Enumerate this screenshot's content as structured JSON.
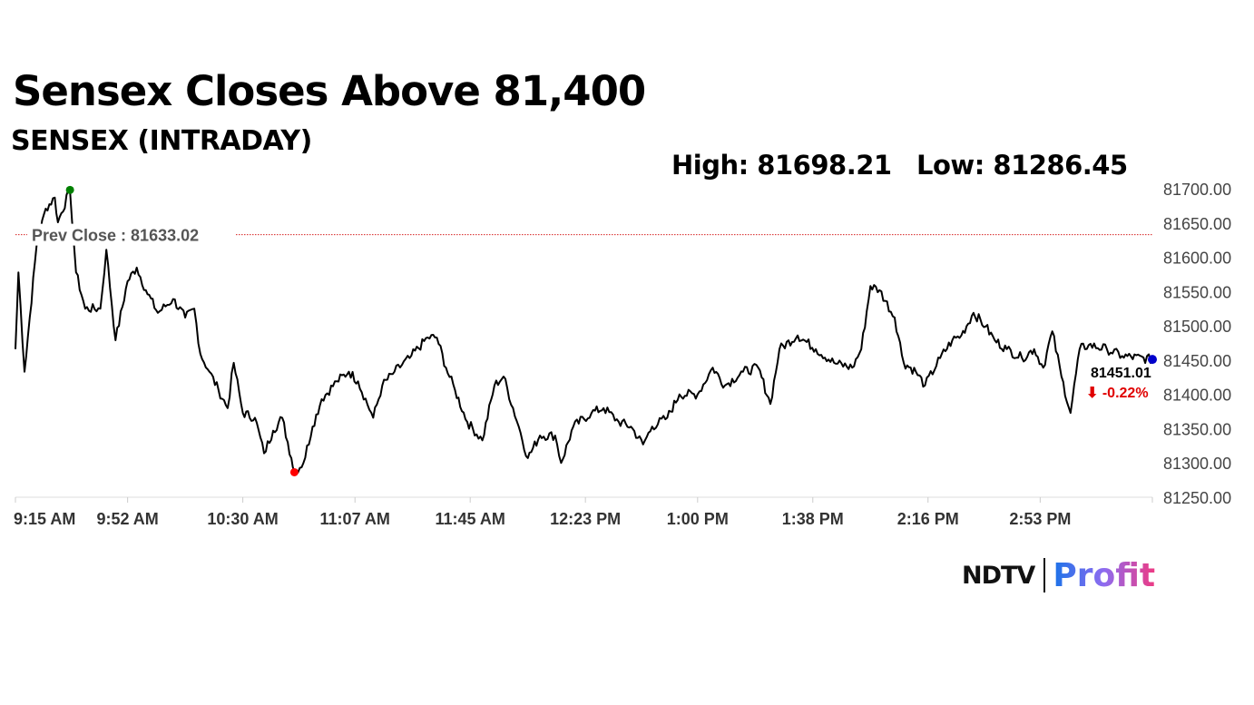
{
  "header": {
    "title": "Sensex Closes Above 81,400",
    "subtitle": "SENSEX (INTRADAY)",
    "high_label": "High: 81698.21",
    "low_label": "Low: 81286.45"
  },
  "chart_data": {
    "type": "line",
    "title": "SENSEX (INTRADAY)",
    "x_unit": "minutes since 9:15 AM",
    "xlim": [
      0,
      375
    ],
    "ylim": [
      81250,
      81700
    ],
    "y_ticks": [
      "81250.00",
      "81300.00",
      "81350.00",
      "81400.00",
      "81450.00",
      "81500.00",
      "81550.00",
      "81600.00",
      "81650.00",
      "81700.00"
    ],
    "y_tick_values": [
      81250,
      81300,
      81350,
      81400,
      81450,
      81500,
      81550,
      81600,
      81650,
      81700
    ],
    "x_ticks": [
      "9:15 AM",
      "9:52 AM",
      "10:30 AM",
      "11:07 AM",
      "11:45 AM",
      "12:23 PM",
      "1:00 PM",
      "1:38 PM",
      "2:16 PM",
      "2:53 PM"
    ],
    "x_tick_values": [
      0,
      37,
      75,
      112,
      150,
      188,
      225,
      263,
      301,
      338
    ],
    "prev_close": 81633.02,
    "prev_close_label": "Prev Close : 81633.02",
    "high": {
      "x": 18,
      "y": 81698.21
    },
    "low": {
      "x": 92,
      "y": 81286.45
    },
    "last": {
      "x": 375,
      "y": 81451.01
    },
    "last_label": "81451.01",
    "change_label": "⬇ -0.22%",
    "colors": {
      "line": "#000000",
      "high": "#008000",
      "low": "#ff0000",
      "last": "#0000cc",
      "prev_close": "#d62020",
      "change": "#e00000"
    },
    "series": [
      {
        "name": "SENSEX",
        "points": [
          [
            0,
            81466
          ],
          [
            1,
            81578
          ],
          [
            3,
            81433
          ],
          [
            7,
            81618
          ],
          [
            10,
            81671
          ],
          [
            13,
            81687
          ],
          [
            14,
            81651
          ],
          [
            18,
            81698
          ],
          [
            20,
            81578
          ],
          [
            23,
            81525
          ],
          [
            28,
            81525
          ],
          [
            30,
            81611
          ],
          [
            33,
            81479
          ],
          [
            37,
            81565
          ],
          [
            40,
            81585
          ],
          [
            43,
            81552
          ],
          [
            47,
            81519
          ],
          [
            52,
            81539
          ],
          [
            56,
            81512
          ],
          [
            59,
            81525
          ],
          [
            61,
            81459
          ],
          [
            64,
            81433
          ],
          [
            67,
            81406
          ],
          [
            70,
            81380
          ],
          [
            72,
            81446
          ],
          [
            75,
            81373
          ],
          [
            79,
            81366
          ],
          [
            82,
            81314
          ],
          [
            85,
            81347
          ],
          [
            88,
            81366
          ],
          [
            91,
            81307
          ],
          [
            92,
            81287
          ],
          [
            95,
            81300
          ],
          [
            98,
            81353
          ],
          [
            101,
            81393
          ],
          [
            106,
            81419
          ],
          [
            110,
            81433
          ],
          [
            113,
            81419
          ],
          [
            118,
            81366
          ],
          [
            121,
            81413
          ],
          [
            125,
            81433
          ],
          [
            130,
            81453
          ],
          [
            136,
            81483
          ],
          [
            139,
            81483
          ],
          [
            142,
            81439
          ],
          [
            145,
            81406
          ],
          [
            149,
            81360
          ],
          [
            154,
            81333
          ],
          [
            158,
            81413
          ],
          [
            161,
            81426
          ],
          [
            166,
            81353
          ],
          [
            169,
            81307
          ],
          [
            173,
            81340
          ],
          [
            178,
            81340
          ],
          [
            180,
            81300
          ],
          [
            184,
            81353
          ],
          [
            190,
            81373
          ],
          [
            194,
            81380
          ],
          [
            199,
            81360
          ],
          [
            203,
            81353
          ],
          [
            207,
            81327
          ],
          [
            210,
            81353
          ],
          [
            215,
            81366
          ],
          [
            219,
            81400
          ],
          [
            225,
            81400
          ],
          [
            230,
            81439
          ],
          [
            234,
            81413
          ],
          [
            240,
            81433
          ],
          [
            245,
            81439
          ],
          [
            249,
            81386
          ],
          [
            252,
            81466
          ],
          [
            258,
            81486
          ],
          [
            264,
            81466
          ],
          [
            270,
            81446
          ],
          [
            276,
            81439
          ],
          [
            279,
            81466
          ],
          [
            282,
            81558
          ],
          [
            285,
            81552
          ],
          [
            290,
            81512
          ],
          [
            293,
            81446
          ],
          [
            297,
            81433
          ],
          [
            300,
            81413
          ],
          [
            305,
            81453
          ],
          [
            309,
            81479
          ],
          [
            312,
            81486
          ],
          [
            316,
            81519
          ],
          [
            320,
            81499
          ],
          [
            323,
            81479
          ],
          [
            327,
            81466
          ],
          [
            332,
            81453
          ],
          [
            336,
            81466
          ],
          [
            339,
            81439
          ],
          [
            342,
            81492
          ],
          [
            345,
            81426
          ],
          [
            348,
            81373
          ],
          [
            351,
            81466
          ],
          [
            354,
            81472
          ],
          [
            360,
            81466
          ],
          [
            365,
            81456
          ],
          [
            375,
            81451
          ]
        ]
      }
    ]
  },
  "brand": {
    "ndtv": "NDTV",
    "profit": "Profit"
  }
}
